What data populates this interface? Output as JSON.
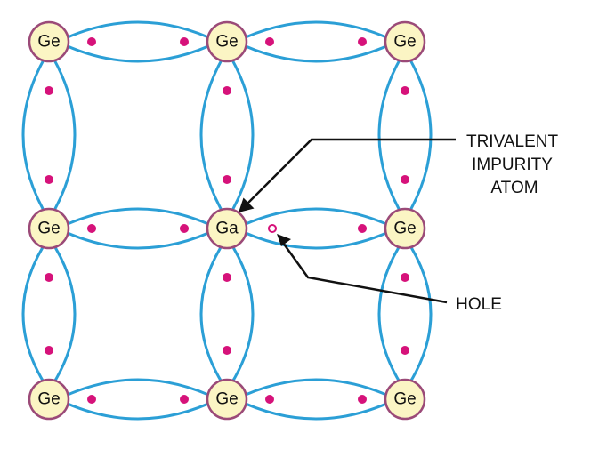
{
  "atoms": [
    {
      "label": "Ge"
    },
    {
      "label": "Ge"
    },
    {
      "label": "Ge"
    },
    {
      "label": "Ge"
    },
    {
      "label": "Ga"
    },
    {
      "label": "Ge"
    },
    {
      "label": "Ge"
    },
    {
      "label": "Ge"
    },
    {
      "label": "Ge"
    }
  ],
  "callouts": {
    "impurity": {
      "lines": [
        "TRIVALENT",
        "IMPURITY",
        "ATOM"
      ]
    },
    "hole": {
      "label": "HOLE"
    }
  },
  "colors": {
    "bond": "#2b9fd6",
    "electron": "#d6127a",
    "atom_fill": "#fbf5c4",
    "atom_stroke": "#9b4a78"
  }
}
